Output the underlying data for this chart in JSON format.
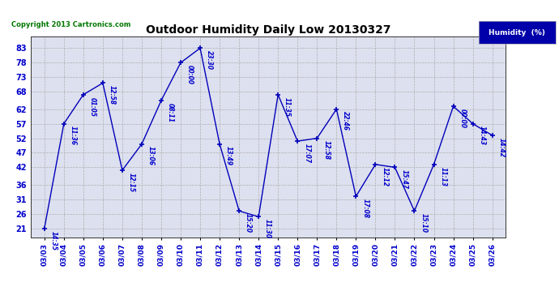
{
  "title": "Outdoor Humidity Daily Low 20130327",
  "copyright": "Copyright 2013 Cartronics.com",
  "legend_label": "Humidity  (%)",
  "x_labels": [
    "03/03",
    "03/04",
    "03/05",
    "03/06",
    "03/07",
    "03/08",
    "03/09",
    "03/10",
    "03/11",
    "03/12",
    "03/13",
    "03/14",
    "03/15",
    "03/16",
    "03/17",
    "03/18",
    "03/19",
    "03/20",
    "03/21",
    "03/22",
    "03/23",
    "03/24",
    "03/25",
    "03/26"
  ],
  "y_values": [
    21,
    57,
    67,
    71,
    41,
    50,
    65,
    78,
    83,
    50,
    27,
    25,
    67,
    51,
    52,
    62,
    32,
    43,
    42,
    27,
    43,
    63,
    57,
    53
  ],
  "point_labels": [
    "14:35",
    "11:36",
    "01:05",
    "12:58",
    "12:15",
    "13:06",
    "08:11",
    "00:00",
    "23:30",
    "13:49",
    "15:20",
    "11:30",
    "11:35",
    "17:07",
    "12:58",
    "22:46",
    "17:08",
    "12:12",
    "15:47",
    "15:10",
    "11:13",
    "00:00",
    "14:43",
    "14:42"
  ],
  "y_ticks": [
    21,
    26,
    31,
    36,
    42,
    47,
    52,
    57,
    62,
    68,
    73,
    78,
    83
  ],
  "line_color": "#0000bb",
  "marker_color": "#0000bb",
  "grid_color": "#aaaaaa",
  "bg_color": "#ffffff",
  "plot_bg_color": "#dde0ee",
  "title_color": "#000000",
  "legend_bg": "#0000aa",
  "legend_text": "#ffffff",
  "copyright_color": "#007700",
  "label_color": "#0000cc",
  "axis_label_color": "#0000cc"
}
